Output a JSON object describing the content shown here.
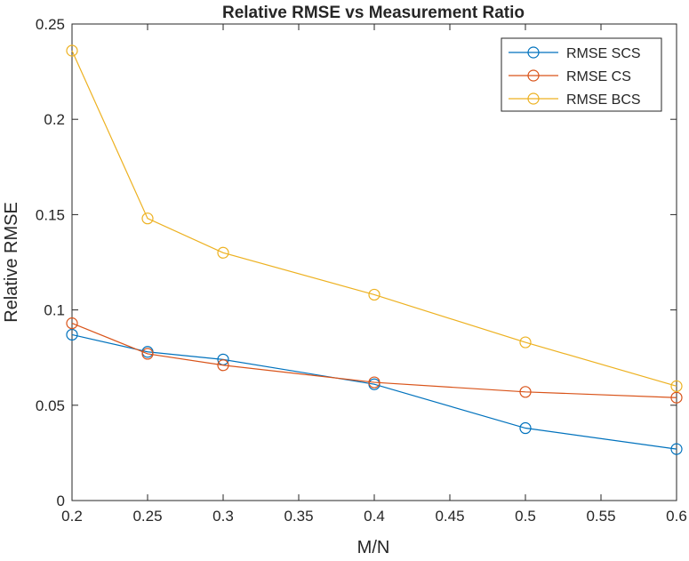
{
  "chart_data": {
    "type": "line",
    "title": "Relative RMSE vs Measurement Ratio",
    "xlabel": "M/N",
    "ylabel": "Relative RMSE",
    "xlim": [
      0.2,
      0.6
    ],
    "ylim": [
      0,
      0.25
    ],
    "xticks": [
      "0.2",
      "0.25",
      "0.3",
      "0.35",
      "0.4",
      "0.45",
      "0.5",
      "0.55",
      "0.6"
    ],
    "yticks": [
      "0",
      "0.05",
      "0.1",
      "0.15",
      "0.2",
      "0.25"
    ],
    "x": [
      0.2,
      0.25,
      0.3,
      0.4,
      0.5,
      0.6
    ],
    "grid": false,
    "legend_position": "top-right",
    "marker": "circle",
    "series": [
      {
        "name": "RMSE SCS",
        "color": "#0072bd",
        "values": [
          0.087,
          0.078,
          0.074,
          0.061,
          0.038,
          0.027
        ]
      },
      {
        "name": "RMSE CS",
        "color": "#d95319",
        "values": [
          0.093,
          0.077,
          0.071,
          0.062,
          0.057,
          0.054
        ]
      },
      {
        "name": "RMSE BCS",
        "color": "#edb120",
        "values": [
          0.236,
          0.148,
          0.13,
          0.108,
          0.083,
          0.06
        ]
      }
    ]
  }
}
